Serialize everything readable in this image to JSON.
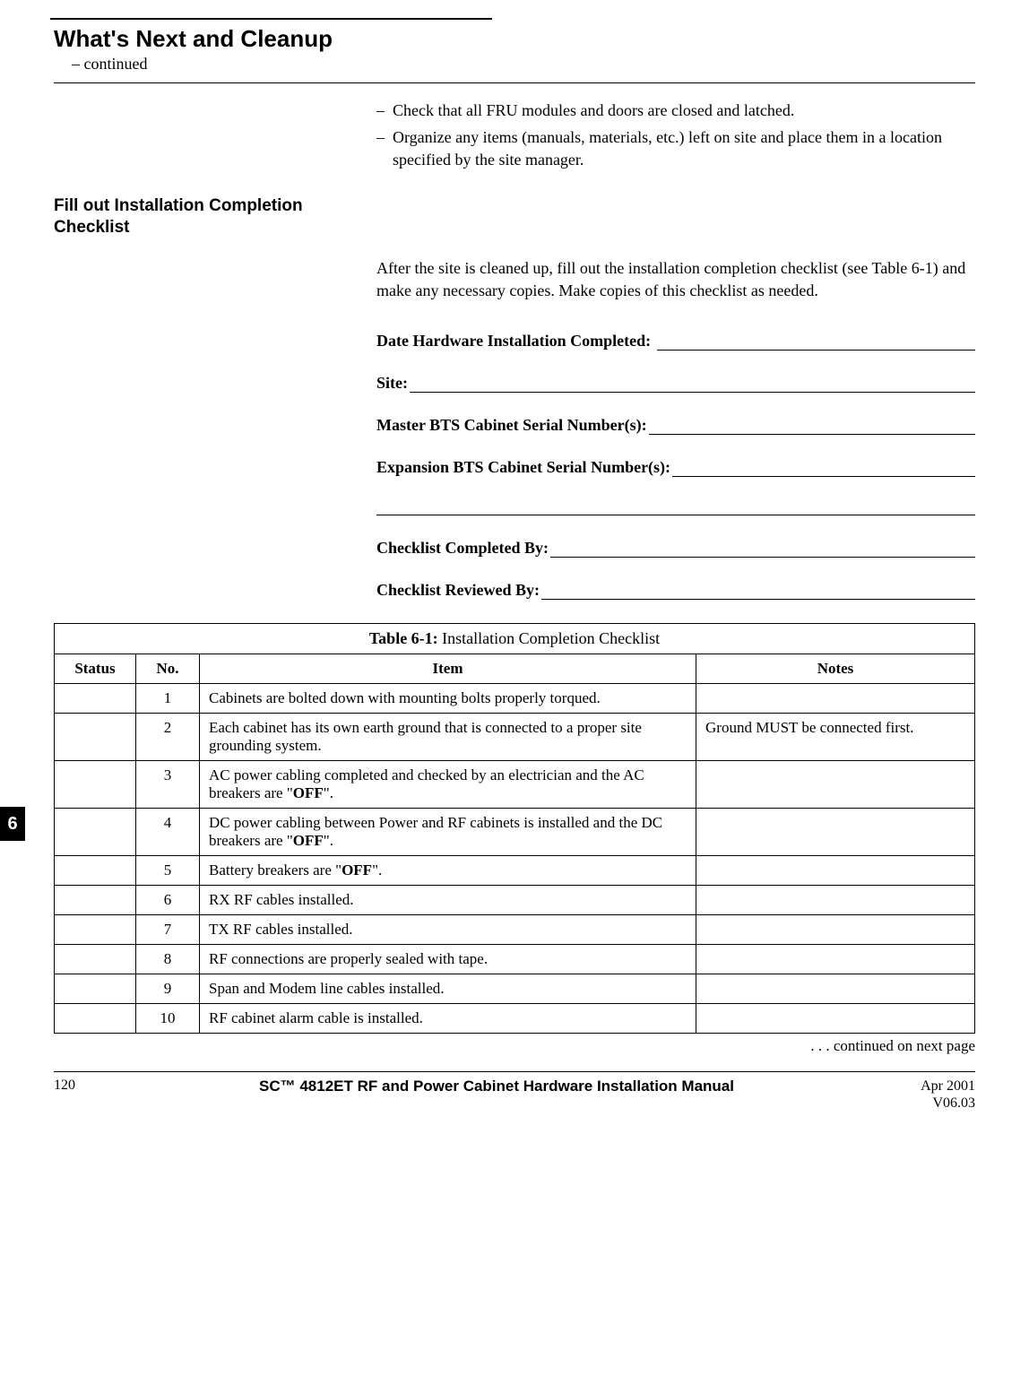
{
  "heading": {
    "title": "What's Next and Cleanup",
    "subtitle": "– continued"
  },
  "bullets": [
    "Check that all FRU modules and doors are closed and latched.",
    "Organize any items (manuals, materials, etc.) left on site and place them in a location specified by the site manager."
  ],
  "section_heading": "Fill out Installation Completion Checklist",
  "intro_para": "After the site is cleaned up, fill out the installation completion checklist (see Table 6-1) and make any necessary copies. Make copies of this checklist as needed.",
  "form": {
    "date_label": "Date Hardware Installation Completed: ",
    "site_label": "Site:",
    "master_label": "Master BTS Cabinet Serial Number(s):",
    "expansion_label": "Expansion BTS Cabinet Serial Number(s):",
    "completed_by_label": "Checklist Completed By:",
    "reviewed_by_label": "Checklist Reviewed By:"
  },
  "tab_number": "6",
  "table": {
    "caption_prefix": "Table 6-1:",
    "caption_rest": " Installation Completion Checklist",
    "headers": {
      "status": "Status",
      "no": "No.",
      "item": "Item",
      "notes": "Notes"
    },
    "rows": [
      {
        "no": "1",
        "item_html": "Cabinets are bolted down with mounting bolts properly torqued.",
        "notes": ""
      },
      {
        "no": "2",
        "item_html": "Each cabinet has its own earth ground that is connected to a proper site grounding system.",
        "notes": "Ground MUST be connected first."
      },
      {
        "no": "3",
        "item_html": "AC power cabling completed and checked by an electrician and the AC breakers are \"<span class=\"off\">OFF</span>\".",
        "notes": ""
      },
      {
        "no": "4",
        "item_html": "DC power cabling between Power and RF cabinets is installed and the DC breakers are \"<span class=\"off\">OFF</span>\".",
        "notes": ""
      },
      {
        "no": "5",
        "item_html": "Battery breakers are \"<span class=\"off\">OFF</span>\".",
        "notes": ""
      },
      {
        "no": "6",
        "item_html": "RX RF cables installed.",
        "notes": ""
      },
      {
        "no": "7",
        "item_html": "TX RF cables installed.",
        "notes": ""
      },
      {
        "no": "8",
        "item_html": "RF connections are properly sealed with tape.",
        "notes": ""
      },
      {
        "no": "9",
        "item_html": "Span and Modem line cables installed.",
        "notes": ""
      },
      {
        "no": "10",
        "item_html": "RF cabinet alarm cable is installed.",
        "notes": ""
      }
    ]
  },
  "continued_note": " . . . continued on next page",
  "footer": {
    "page_number": "120",
    "manual_title": "SC™ 4812ET RF and Power Cabinet Hardware Installation Manual",
    "date": "Apr 2001",
    "version": "V06.03"
  }
}
